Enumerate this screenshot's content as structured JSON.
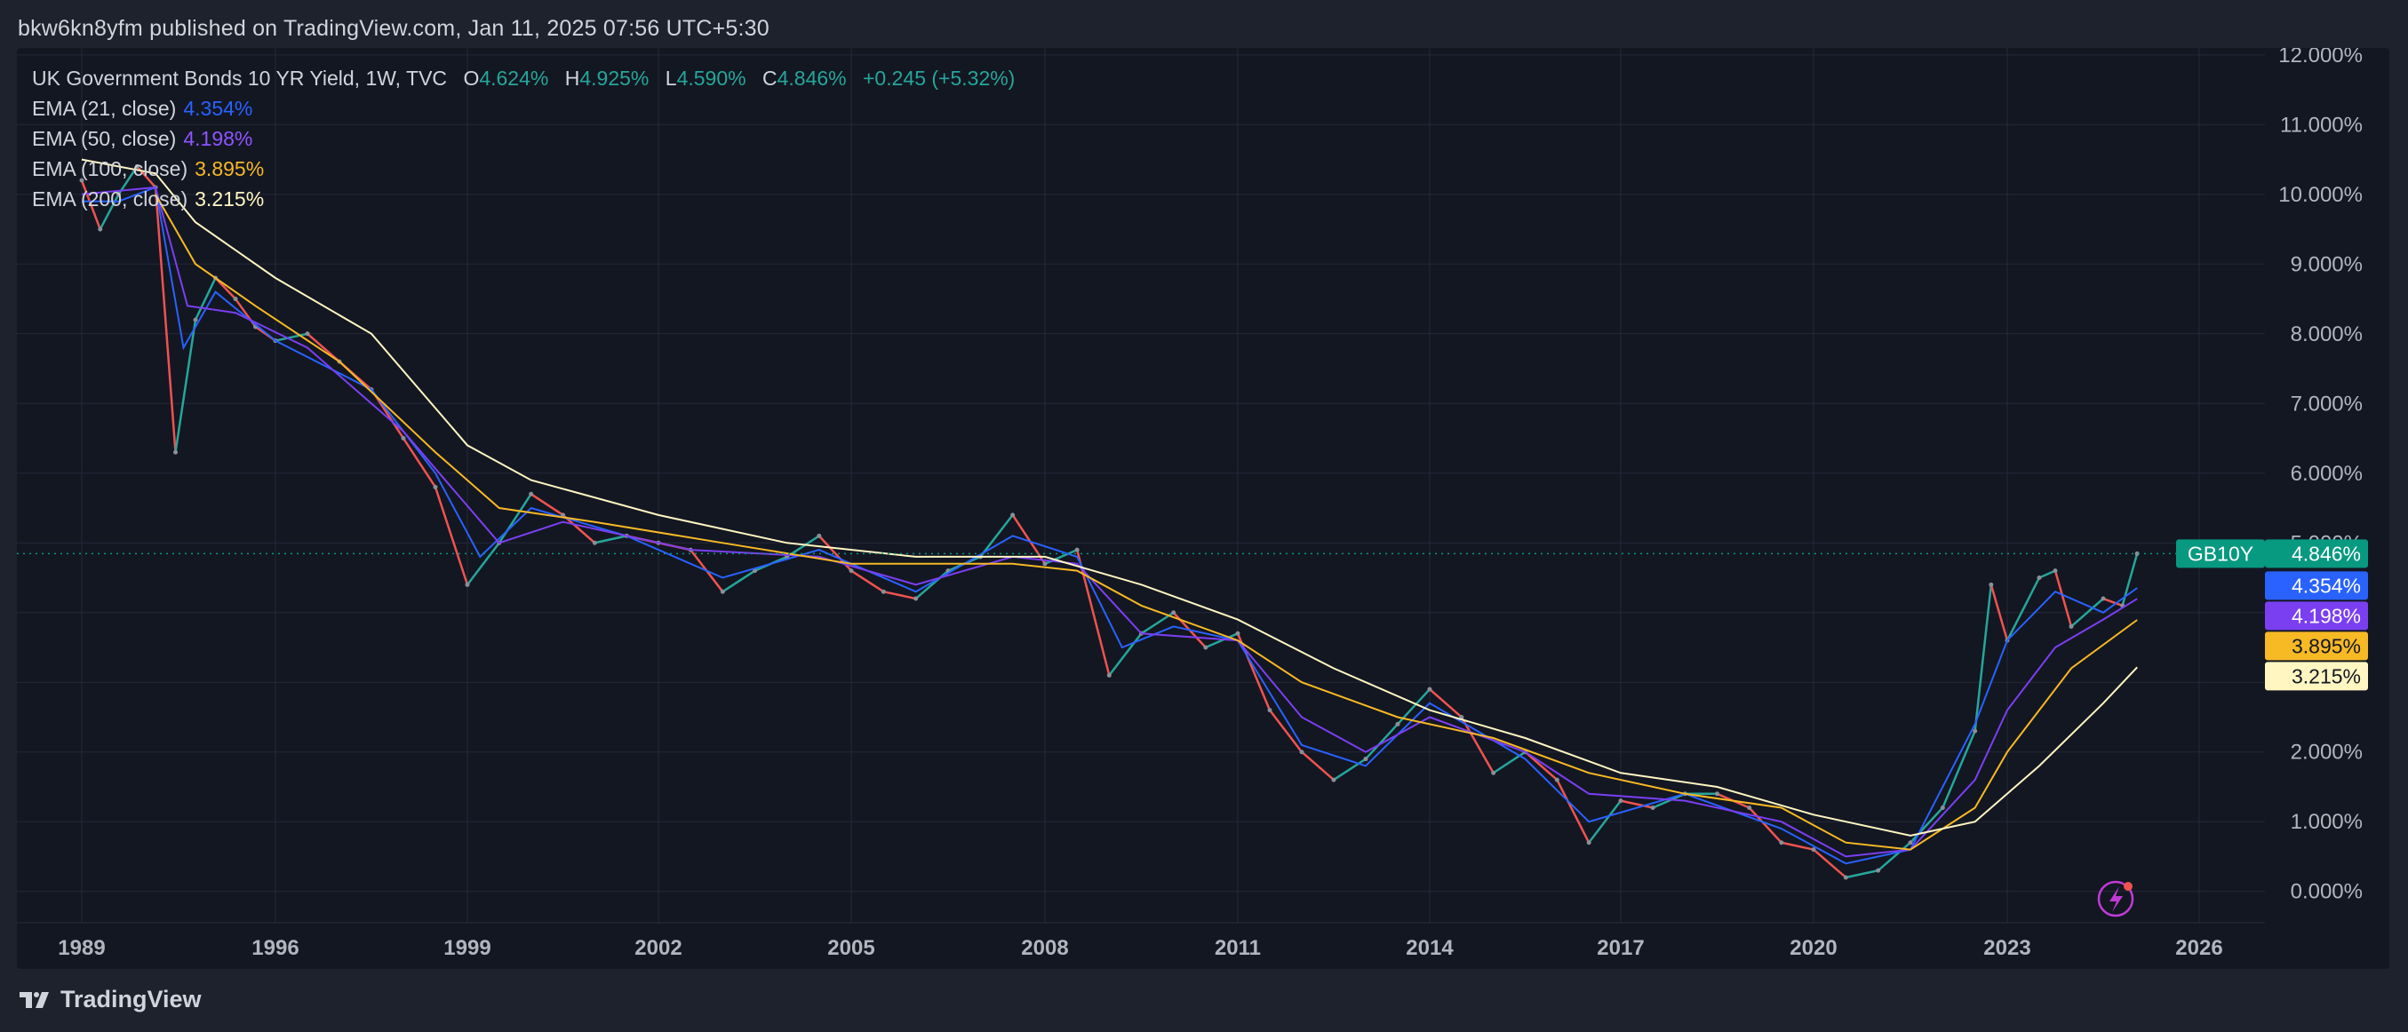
{
  "header": {
    "publisher": "bkw6kn8yfm published on TradingView.com, Jan 11, 2025 07:56 UTC+5:30"
  },
  "legend": {
    "symbol": "UK Government Bonds 10 YR Yield, 1W, TVC",
    "ohlc": [
      {
        "key": "O",
        "value": "4.624%"
      },
      {
        "key": "H",
        "value": "4.925%"
      },
      {
        "key": "L",
        "value": "4.590%"
      },
      {
        "key": "C",
        "value": "4.846%"
      }
    ],
    "change": "+0.245 (+5.32%)",
    "emas": [
      {
        "label": "EMA (21, close)",
        "value": "4.354%",
        "color": "#2962ff"
      },
      {
        "label": "EMA (50, close)",
        "value": "4.198%",
        "color": "#7b3ff2"
      },
      {
        "label": "EMA (100, close)",
        "value": "3.895%",
        "color": "#f7b924"
      },
      {
        "label": "EMA (200, close)",
        "value": "3.215%",
        "color": "#fff6c2"
      }
    ]
  },
  "footer": {
    "brand": "TradingView"
  },
  "colors": {
    "up": "#26a69a",
    "down": "#ef5350",
    "background": "#131722",
    "grid": "#242938",
    "axis_text": "#b2b5be"
  },
  "chart_data": {
    "type": "line",
    "title": "UK Government Bonds 10 YR Yield, 1W, TVC",
    "x_ticks": [
      "1989",
      "1996",
      "1999",
      "2002",
      "2005",
      "2008",
      "2011",
      "2014",
      "2017",
      "2020",
      "2023",
      "2026"
    ],
    "y_ticks": [
      "0.000%",
      "1.000%",
      "2.000%",
      "3.000%",
      "4.000%",
      "5.000%",
      "6.000%",
      "7.000%",
      "8.000%",
      "9.000%",
      "10.000%",
      "11.000%",
      "12.000%"
    ],
    "ylim": [
      -0.45,
      12.1
    ],
    "price_tag": {
      "label": "GB10Y",
      "value": "4.846%",
      "color": "#089981"
    },
    "series": [
      {
        "name": "UK Government Bonds 10 YR Yield",
        "color": "#26a69a",
        "points": [
          [
            1989.0,
            10.2
          ],
          [
            1990.0,
            9.5
          ],
          [
            1991.0,
            10.0
          ],
          [
            1992.0,
            10.4
          ],
          [
            1993.0,
            10.1
          ],
          [
            1993.5,
            6.3
          ],
          [
            1994.0,
            8.2
          ],
          [
            1994.5,
            8.8
          ],
          [
            1995.0,
            8.5
          ],
          [
            1995.5,
            8.1
          ],
          [
            1996.0,
            7.9
          ],
          [
            1996.5,
            8.0
          ],
          [
            1997.0,
            7.6
          ],
          [
            1997.5,
            7.2
          ],
          [
            1998.0,
            6.5
          ],
          [
            1998.5,
            5.8
          ],
          [
            1999.0,
            4.4
          ],
          [
            1999.5,
            5.0
          ],
          [
            2000.0,
            5.7
          ],
          [
            2000.5,
            5.4
          ],
          [
            2001.0,
            5.0
          ],
          [
            2001.5,
            5.1
          ],
          [
            2002.0,
            5.0
          ],
          [
            2002.5,
            4.9
          ],
          [
            2003.0,
            4.3
          ],
          [
            2003.5,
            4.6
          ],
          [
            2004.0,
            4.8
          ],
          [
            2004.5,
            5.1
          ],
          [
            2005.0,
            4.6
          ],
          [
            2005.5,
            4.3
          ],
          [
            2006.0,
            4.2
          ],
          [
            2006.5,
            4.6
          ],
          [
            2007.0,
            4.8
          ],
          [
            2007.5,
            5.4
          ],
          [
            2008.0,
            4.7
          ],
          [
            2008.5,
            4.9
          ],
          [
            2009.0,
            3.1
          ],
          [
            2009.5,
            3.7
          ],
          [
            2010.0,
            4.0
          ],
          [
            2010.5,
            3.5
          ],
          [
            2011.0,
            3.7
          ],
          [
            2011.5,
            2.6
          ],
          [
            2012.0,
            2.0
          ],
          [
            2012.5,
            1.6
          ],
          [
            2013.0,
            1.9
          ],
          [
            2013.5,
            2.4
          ],
          [
            2014.0,
            2.9
          ],
          [
            2014.5,
            2.5
          ],
          [
            2015.0,
            1.7
          ],
          [
            2015.5,
            2.0
          ],
          [
            2016.0,
            1.6
          ],
          [
            2016.5,
            0.7
          ],
          [
            2017.0,
            1.3
          ],
          [
            2017.5,
            1.2
          ],
          [
            2018.0,
            1.4
          ],
          [
            2018.5,
            1.4
          ],
          [
            2019.0,
            1.2
          ],
          [
            2019.5,
            0.7
          ],
          [
            2020.0,
            0.6
          ],
          [
            2020.5,
            0.2
          ],
          [
            2021.0,
            0.3
          ],
          [
            2021.5,
            0.7
          ],
          [
            2022.0,
            1.2
          ],
          [
            2022.5,
            2.3
          ],
          [
            2022.75,
            4.4
          ],
          [
            2023.0,
            3.6
          ],
          [
            2023.5,
            4.5
          ],
          [
            2023.75,
            4.6
          ],
          [
            2024.0,
            3.8
          ],
          [
            2024.5,
            4.2
          ],
          [
            2024.8,
            4.1
          ],
          [
            2025.03,
            4.846
          ]
        ]
      },
      {
        "name": "EMA (21, close)",
        "color": "#2962ff",
        "points": [
          [
            1989.0,
            9.9
          ],
          [
            1991.0,
            9.9
          ],
          [
            1993.0,
            10.1
          ],
          [
            1993.7,
            7.8
          ],
          [
            1994.5,
            8.6
          ],
          [
            1996.0,
            7.9
          ],
          [
            1997.5,
            7.2
          ],
          [
            1998.5,
            6.0
          ],
          [
            1999.2,
            4.8
          ],
          [
            2000.0,
            5.5
          ],
          [
            2001.5,
            5.1
          ],
          [
            2003.0,
            4.5
          ],
          [
            2004.5,
            4.9
          ],
          [
            2006.0,
            4.3
          ],
          [
            2007.5,
            5.1
          ],
          [
            2008.5,
            4.8
          ],
          [
            2009.2,
            3.5
          ],
          [
            2010.0,
            3.8
          ],
          [
            2011.0,
            3.6
          ],
          [
            2012.0,
            2.1
          ],
          [
            2013.0,
            1.8
          ],
          [
            2014.0,
            2.7
          ],
          [
            2015.5,
            1.9
          ],
          [
            2016.5,
            1.0
          ],
          [
            2018.0,
            1.4
          ],
          [
            2019.5,
            0.9
          ],
          [
            2020.5,
            0.4
          ],
          [
            2021.5,
            0.6
          ],
          [
            2022.5,
            2.4
          ],
          [
            2023.0,
            3.6
          ],
          [
            2023.75,
            4.3
          ],
          [
            2024.5,
            4.0
          ],
          [
            2025.03,
            4.354
          ]
        ]
      },
      {
        "name": "EMA (50, close)",
        "color": "#7b3ff2",
        "points": [
          [
            1989.0,
            10.0
          ],
          [
            1993.0,
            10.1
          ],
          [
            1993.8,
            8.4
          ],
          [
            1995.0,
            8.3
          ],
          [
            1996.5,
            7.8
          ],
          [
            1998.0,
            6.6
          ],
          [
            1999.5,
            5.0
          ],
          [
            2000.5,
            5.3
          ],
          [
            2002.5,
            4.9
          ],
          [
            2004.5,
            4.8
          ],
          [
            2006.0,
            4.4
          ],
          [
            2007.5,
            4.8
          ],
          [
            2008.5,
            4.7
          ],
          [
            2009.5,
            3.7
          ],
          [
            2011.0,
            3.6
          ],
          [
            2012.0,
            2.5
          ],
          [
            2013.0,
            2.0
          ],
          [
            2014.0,
            2.5
          ],
          [
            2015.5,
            2.0
          ],
          [
            2016.5,
            1.4
          ],
          [
            2018.0,
            1.3
          ],
          [
            2019.5,
            1.0
          ],
          [
            2020.5,
            0.5
          ],
          [
            2021.5,
            0.6
          ],
          [
            2022.5,
            1.6
          ],
          [
            2023.0,
            2.6
          ],
          [
            2023.75,
            3.5
          ],
          [
            2024.5,
            3.9
          ],
          [
            2025.03,
            4.198
          ]
        ]
      },
      {
        "name": "EMA (100, close)",
        "color": "#f7b924",
        "points": [
          [
            1993.0,
            10.0
          ],
          [
            1994.0,
            9.0
          ],
          [
            1995.5,
            8.4
          ],
          [
            1997.0,
            7.6
          ],
          [
            1998.5,
            6.3
          ],
          [
            1999.5,
            5.5
          ],
          [
            2001.0,
            5.3
          ],
          [
            2003.0,
            5.0
          ],
          [
            2005.0,
            4.7
          ],
          [
            2007.5,
            4.7
          ],
          [
            2008.5,
            4.6
          ],
          [
            2009.5,
            4.1
          ],
          [
            2011.0,
            3.6
          ],
          [
            2012.0,
            3.0
          ],
          [
            2013.5,
            2.5
          ],
          [
            2015.0,
            2.2
          ],
          [
            2016.5,
            1.7
          ],
          [
            2018.0,
            1.4
          ],
          [
            2019.5,
            1.2
          ],
          [
            2020.5,
            0.7
          ],
          [
            2021.5,
            0.6
          ],
          [
            2022.5,
            1.2
          ],
          [
            2023.0,
            2.0
          ],
          [
            2024.0,
            3.2
          ],
          [
            2025.03,
            3.895
          ]
        ]
      },
      {
        "name": "EMA (200, close)",
        "color": "#fff6c2",
        "points": [
          [
            1989.0,
            10.5
          ],
          [
            1993.0,
            10.3
          ],
          [
            1994.0,
            9.6
          ],
          [
            1996.0,
            8.8
          ],
          [
            1997.5,
            8.0
          ],
          [
            1999.0,
            6.4
          ],
          [
            2000.0,
            5.9
          ],
          [
            2002.0,
            5.4
          ],
          [
            2004.0,
            5.0
          ],
          [
            2006.0,
            4.8
          ],
          [
            2008.0,
            4.8
          ],
          [
            2009.5,
            4.4
          ],
          [
            2011.0,
            3.9
          ],
          [
            2012.5,
            3.2
          ],
          [
            2014.0,
            2.6
          ],
          [
            2015.5,
            2.2
          ],
          [
            2017.0,
            1.7
          ],
          [
            2018.5,
            1.5
          ],
          [
            2020.0,
            1.1
          ],
          [
            2021.5,
            0.8
          ],
          [
            2022.5,
            1.0
          ],
          [
            2023.5,
            1.8
          ],
          [
            2024.5,
            2.7
          ],
          [
            2025.03,
            3.215
          ]
        ]
      }
    ]
  }
}
